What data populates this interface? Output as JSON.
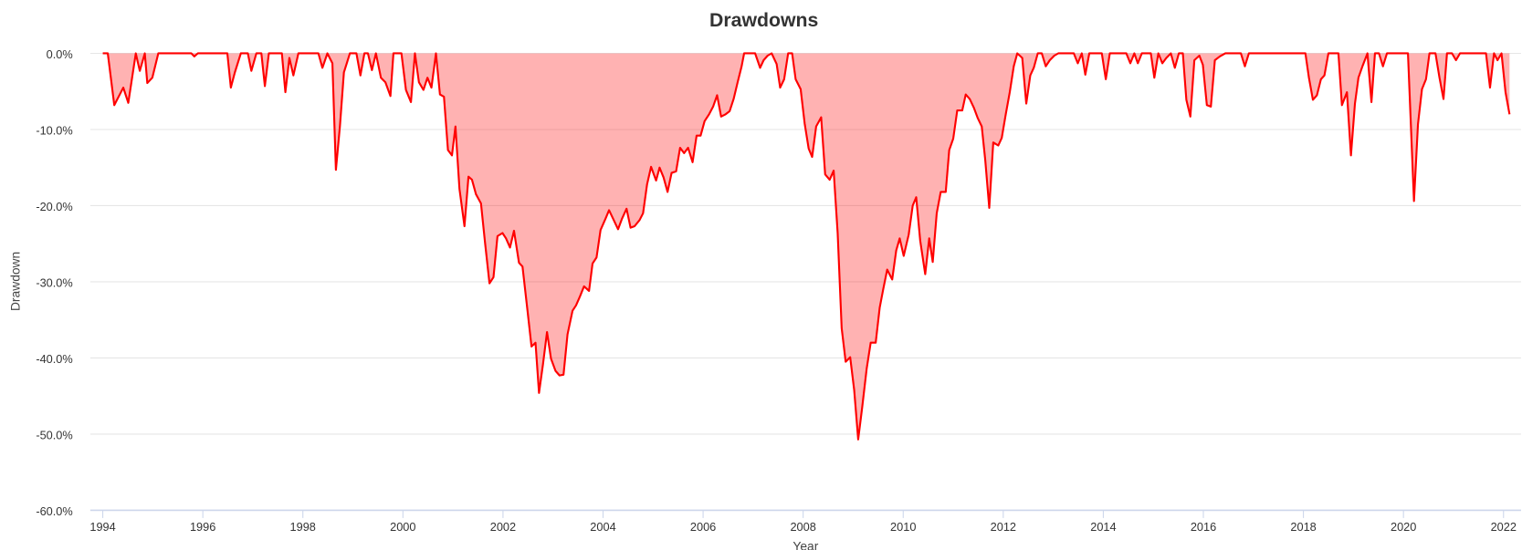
{
  "chart_data": {
    "type": "area",
    "title": "Drawdowns",
    "x_label": "Year",
    "y_label": "Drawdown",
    "color": "#ff0000",
    "grid": true,
    "xlim": [
      1993.75,
      2022.35
    ],
    "xticks": [
      1994,
      1996,
      1998,
      2000,
      2002,
      2004,
      2006,
      2008,
      2010,
      2012,
      2014,
      2016,
      2018,
      2020,
      2022
    ],
    "ylim": [
      -60,
      0
    ],
    "yticks": [
      {
        "value": 0,
        "label": "0.0%"
      },
      {
        "value": -10,
        "label": "-10.0%"
      },
      {
        "value": -20,
        "label": "-20.0%"
      },
      {
        "value": -30,
        "label": "-30.0%"
      },
      {
        "value": -40,
        "label": "-40.0%"
      },
      {
        "value": -50,
        "label": "-50.0%"
      },
      {
        "value": -60,
        "label": "-60.0%"
      }
    ],
    "x": [
      1994.0,
      1994.1,
      1994.23,
      1994.41,
      1994.51,
      1994.66,
      1994.74,
      1994.84,
      1994.89,
      1994.99,
      1995.11,
      1995.77,
      1995.83,
      1995.9,
      1996.49,
      1996.56,
      1996.64,
      1996.76,
      1996.9,
      1996.97,
      1997.07,
      1997.17,
      1997.24,
      1997.32,
      1997.58,
      1997.65,
      1997.73,
      1997.81,
      1997.91,
      1998.31,
      1998.39,
      1998.49,
      1998.59,
      1998.66,
      1998.74,
      1998.82,
      1998.94,
      1999.07,
      1999.15,
      1999.23,
      1999.3,
      1999.38,
      1999.46,
      1999.56,
      1999.65,
      1999.75,
      1999.81,
      1999.97,
      2000.06,
      2000.16,
      2000.24,
      2000.32,
      2000.41,
      2000.49,
      2000.57,
      2000.66,
      2000.74,
      2000.82,
      2000.9,
      2000.98,
      2001.05,
      2001.13,
      2001.23,
      2001.31,
      2001.38,
      2001.46,
      2001.56,
      2001.64,
      2001.73,
      2001.81,
      2001.89,
      2001.99,
      2002.06,
      2002.14,
      2002.22,
      2002.32,
      2002.39,
      2002.49,
      2002.57,
      2002.65,
      2002.72,
      2002.8,
      2002.88,
      2002.96,
      2003.05,
      2003.13,
      2003.21,
      2003.29,
      2003.39,
      2003.46,
      2003.54,
      2003.62,
      2003.72,
      2003.79,
      2003.87,
      2003.95,
      2004.05,
      2004.12,
      2004.2,
      2004.3,
      2004.38,
      2004.47,
      2004.55,
      2004.63,
      2004.73,
      2004.8,
      2004.88,
      2004.96,
      2005.06,
      2005.13,
      2005.21,
      2005.29,
      2005.37,
      2005.46,
      2005.54,
      2005.62,
      2005.7,
      2005.79,
      2005.87,
      2005.95,
      2006.03,
      2006.12,
      2006.2,
      2006.28,
      2006.36,
      2006.45,
      2006.53,
      2006.61,
      2006.69,
      2006.77,
      2006.82,
      2007.04,
      2007.14,
      2007.21,
      2007.29,
      2007.37,
      2007.47,
      2007.54,
      2007.62,
      2007.7,
      2007.78,
      2007.85,
      2007.95,
      2008.03,
      2008.11,
      2008.18,
      2008.26,
      2008.36,
      2008.44,
      2008.53,
      2008.61,
      2008.69,
      2008.77,
      2008.85,
      2008.94,
      2009.02,
      2009.1,
      2009.18,
      2009.27,
      2009.35,
      2009.45,
      2009.53,
      2009.6,
      2009.68,
      2009.78,
      2009.86,
      2009.93,
      2010.01,
      2010.11,
      2010.19,
      2010.26,
      2010.34,
      2010.44,
      2010.52,
      2010.59,
      2010.67,
      2010.75,
      2010.85,
      2010.92,
      2011.0,
      2011.08,
      2011.18,
      2011.25,
      2011.33,
      2011.41,
      2011.49,
      2011.57,
      2011.64,
      2011.72,
      2011.8,
      2011.9,
      2011.97,
      2012.05,
      2012.13,
      2012.21,
      2012.28,
      2012.38,
      2012.46,
      2012.54,
      2012.61,
      2012.69,
      2012.77,
      2012.85,
      2012.93,
      2013.02,
      2013.1,
      2013.41,
      2013.49,
      2013.57,
      2013.64,
      2013.72,
      2013.97,
      2014.05,
      2014.13,
      2014.46,
      2014.54,
      2014.62,
      2014.69,
      2014.77,
      2014.95,
      2015.02,
      2015.1,
      2015.18,
      2015.26,
      2015.35,
      2015.43,
      2015.51,
      2015.59,
      2015.66,
      2015.74,
      2015.82,
      2015.92,
      2015.99,
      2016.07,
      2016.15,
      2016.23,
      2016.33,
      2016.44,
      2016.75,
      2016.83,
      2016.91,
      2018.04,
      2018.11,
      2018.19,
      2018.27,
      2018.35,
      2018.42,
      2018.5,
      2018.7,
      2018.77,
      2018.87,
      2018.95,
      2019.03,
      2019.1,
      2019.18,
      2019.28,
      2019.36,
      2019.43,
      2019.51,
      2019.59,
      2019.67,
      2020.02,
      2020.09,
      2020.21,
      2020.29,
      2020.37,
      2020.45,
      2020.52,
      2020.64,
      2020.72,
      2020.8,
      2020.87,
      2020.97,
      2021.05,
      2021.13,
      2021.65,
      2021.73,
      2021.81,
      2021.88,
      2021.96,
      2022.04,
      2022.12
    ],
    "values": [
      0,
      0,
      -6.8,
      -4.5,
      -6.5,
      0,
      -2.3,
      0,
      -3.9,
      -3.2,
      0,
      0,
      -0.4,
      0,
      0,
      -4.5,
      -2.5,
      0,
      0,
      -2.3,
      0,
      0,
      -4.3,
      0,
      0,
      -5.1,
      -0.6,
      -2.9,
      0,
      0,
      -1.9,
      0,
      -1.3,
      -15.3,
      -9.6,
      -2.5,
      0,
      0,
      -2.9,
      0,
      0,
      -2.2,
      0,
      -3.2,
      -3.8,
      -5.6,
      0,
      0,
      -4.8,
      -6.4,
      0,
      -3.8,
      -4.8,
      -3.2,
      -4.5,
      0,
      -5.4,
      -5.7,
      -12.7,
      -13.4,
      -9.6,
      -17.8,
      -22.7,
      -16.2,
      -16.6,
      -18.5,
      -19.7,
      -24.8,
      -30.2,
      -29.4,
      -24.0,
      -23.6,
      -24.3,
      -25.5,
      -23.3,
      -27.5,
      -28.0,
      -33.8,
      -38.5,
      -38.0,
      -44.6,
      -40.8,
      -36.6,
      -40.1,
      -41.7,
      -42.3,
      -42.2,
      -36.9,
      -33.8,
      -33.1,
      -31.9,
      -30.6,
      -31.2,
      -27.6,
      -26.8,
      -23.2,
      -21.7,
      -20.6,
      -21.7,
      -23.1,
      -21.7,
      -20.4,
      -22.9,
      -22.7,
      -21.9,
      -21.0,
      -17.2,
      -14.9,
      -16.7,
      -15.0,
      -16.3,
      -18.2,
      -15.7,
      -15.5,
      -12.4,
      -13.1,
      -12.4,
      -14.3,
      -10.8,
      -10.8,
      -8.9,
      -8.0,
      -7.0,
      -5.5,
      -8.3,
      -8.0,
      -7.6,
      -6.0,
      -3.8,
      -1.7,
      0,
      0,
      -1.9,
      -0.9,
      -0.3,
      0,
      -1.4,
      -4.5,
      -3.4,
      0,
      0,
      -3.4,
      -4.7,
      -9.2,
      -12.5,
      -13.6,
      -9.6,
      -8.4,
      -15.9,
      -16.6,
      -15.4,
      -23.6,
      -36.1,
      -40.5,
      -39.9,
      -44.2,
      -50.7,
      -46.5,
      -41.4,
      -38.0,
      -38.0,
      -33.4,
      -31.0,
      -28.4,
      -29.7,
      -25.9,
      -24.3,
      -26.6,
      -23.8,
      -20.0,
      -18.9,
      -24.6,
      -29.0,
      -24.3,
      -27.4,
      -21.0,
      -18.2,
      -18.2,
      -12.7,
      -11.2,
      -7.5,
      -7.5,
      -5.4,
      -6.0,
      -7.1,
      -8.5,
      -9.6,
      -14.0,
      -20.3,
      -11.7,
      -12.1,
      -11.1,
      -8.0,
      -5.1,
      -1.7,
      0,
      -0.6,
      -6.6,
      -2.9,
      -1.9,
      0,
      0,
      -1.7,
      -0.9,
      -0.3,
      0,
      0,
      -1.3,
      0,
      -2.8,
      0,
      0,
      -3.4,
      0,
      0,
      -1.3,
      0,
      -1.3,
      0,
      0,
      -3.2,
      0,
      -1.3,
      -0.6,
      0,
      -1.9,
      0,
      0,
      -6.1,
      -8.3,
      -0.9,
      -0.3,
      -1.5,
      -6.8,
      -7.0,
      -0.9,
      -0.4,
      0,
      0,
      -1.7,
      0,
      0,
      -3.2,
      -6.1,
      -5.5,
      -3.4,
      -2.9,
      0,
      0,
      -6.8,
      -5.1,
      -13.4,
      -6.6,
      -3.2,
      -1.7,
      0,
      -6.4,
      0,
      0,
      -1.7,
      0,
      0,
      0,
      -19.4,
      -9.3,
      -4.7,
      -3.4,
      0,
      0,
      -3.2,
      -6.0,
      0,
      0,
      -0.9,
      0,
      0,
      -4.5,
      0,
      -0.9,
      0,
      -5.1,
      -8.0
    ]
  }
}
